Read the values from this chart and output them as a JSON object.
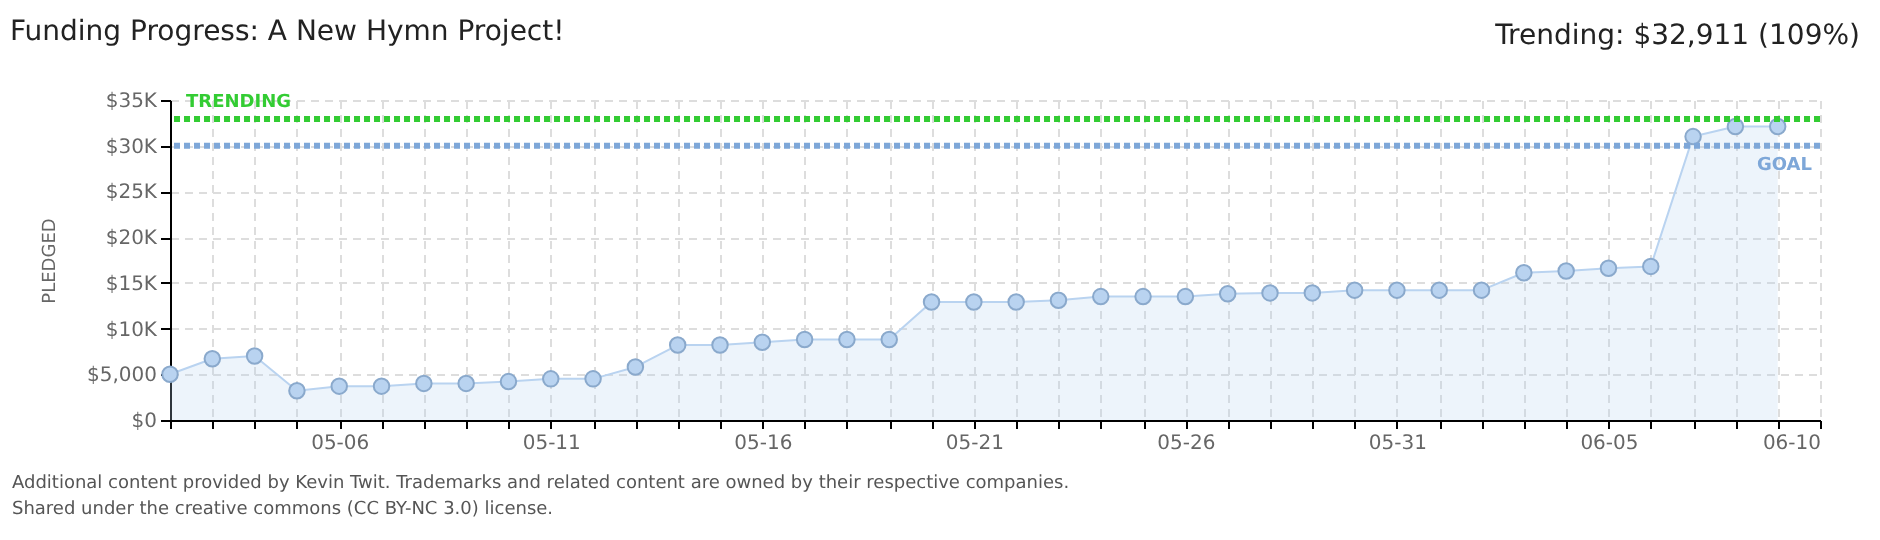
{
  "chart_data": {
    "type": "area",
    "title": "Funding Progress: A New Hymn Project!",
    "subtitle": "Trending: $32,911 (109%)",
    "ylabel": "PLEDGED",
    "x": [
      "--05-02",
      "--05-03",
      "--05-04",
      "--05-05",
      "--05-06",
      "--05-07",
      "--05-08",
      "--05-09",
      "--05-10",
      "--05-11",
      "--05-12",
      "--05-13",
      "--05-14",
      "--05-15",
      "--05-16",
      "--05-17",
      "--05-18",
      "--05-19",
      "--05-20",
      "--05-21",
      "--05-22",
      "--05-23",
      "--05-24",
      "--05-25",
      "--05-26",
      "--05-27",
      "--05-28",
      "--05-29",
      "--05-30",
      "--05-31",
      "--06-01",
      "--06-02",
      "--06-03",
      "--06-04",
      "--06-05",
      "--06-06",
      "--06-07",
      "--06-08",
      "--06-09"
    ],
    "series": [
      {
        "color": "#b9d3f0",
        "values": [
          5000,
          6700,
          7000,
          3200,
          3700,
          3700,
          4000,
          4000,
          4200,
          4500,
          4500,
          5800,
          8200,
          8200,
          8500,
          8800,
          8800,
          8800,
          12900,
          12900,
          12900,
          13100,
          13500,
          13500,
          13500,
          13800,
          13900,
          13900,
          14200,
          14200,
          14200,
          14200,
          16100,
          16300,
          16600,
          16800,
          31000,
          32100,
          32100
        ]
      }
    ],
    "xlim": [
      "--05-02",
      "--06-10"
    ],
    "xticks": [
      {
        "value": "--05-02",
        "label": null
      },
      {
        "value": "--05-03",
        "label": null
      },
      {
        "value": "--05-04",
        "label": null
      },
      {
        "value": "--05-05",
        "label": null
      },
      {
        "value": "--05-06",
        "label": "05-06"
      },
      {
        "value": "--05-07",
        "label": null
      },
      {
        "value": "--05-08",
        "label": null
      },
      {
        "value": "--05-09",
        "label": null
      },
      {
        "value": "--05-10",
        "label": null
      },
      {
        "value": "--05-11",
        "label": "05-11"
      },
      {
        "value": "--05-12",
        "label": null
      },
      {
        "value": "--05-13",
        "label": null
      },
      {
        "value": "--05-14",
        "label": null
      },
      {
        "value": "--05-15",
        "label": null
      },
      {
        "value": "--05-16",
        "label": "05-16"
      },
      {
        "value": "--05-17",
        "label": null
      },
      {
        "value": "--05-18",
        "label": null
      },
      {
        "value": "--05-19",
        "label": null
      },
      {
        "value": "--05-20",
        "label": null
      },
      {
        "value": "--05-21",
        "label": "05-21"
      },
      {
        "value": "--05-22",
        "label": null
      },
      {
        "value": "--05-23",
        "label": null
      },
      {
        "value": "--05-24",
        "label": null
      },
      {
        "value": "--05-25",
        "label": null
      },
      {
        "value": "--05-26",
        "label": "05-26"
      },
      {
        "value": "--05-27",
        "label": null
      },
      {
        "value": "--05-28",
        "label": null
      },
      {
        "value": "--05-29",
        "label": null
      },
      {
        "value": "--05-30",
        "label": null
      },
      {
        "value": "--05-31",
        "label": "05-31"
      },
      {
        "value": "--06-01",
        "label": null
      },
      {
        "value": "--06-02",
        "label": null
      },
      {
        "value": "--06-03",
        "label": null
      },
      {
        "value": "--06-04",
        "label": null
      },
      {
        "value": "--06-05",
        "label": "06-05"
      },
      {
        "value": "--06-06",
        "label": null
      },
      {
        "value": "--06-07",
        "label": null
      },
      {
        "value": "--06-08",
        "label": null
      },
      {
        "value": "--06-09",
        "label": null
      },
      {
        "value": "--06-10",
        "label": "06-10"
      }
    ],
    "ylim": [
      0,
      35000
    ],
    "yticks": [
      {
        "value": 0,
        "label": "$0"
      },
      {
        "value": 5000,
        "label": "$5,000"
      },
      {
        "value": 10000,
        "label": "$10K"
      },
      {
        "value": 15000,
        "label": "$15K"
      },
      {
        "value": 20000,
        "label": "$20K"
      },
      {
        "value": 25000,
        "label": "$25K"
      },
      {
        "value": 30000,
        "label": "$30K"
      },
      {
        "value": 35000,
        "label": "$35K"
      }
    ],
    "ref_lines": [
      {
        "axis": "y",
        "value": 32911,
        "label": "TRENDING",
        "color": "#33cc33",
        "line_style": "dotted"
      },
      {
        "axis": "y",
        "value": 30000,
        "label": "GOAL",
        "color": "#7ea7d8",
        "line_style": "dotted"
      }
    ],
    "grid": true,
    "marker": "circle",
    "annotations": [
      "Additional content provided by Kevin Twit. Trademarks and related content are owned by their respective companies.",
      "Shared under the creative commons (CC BY-NC 3.0) license."
    ]
  }
}
